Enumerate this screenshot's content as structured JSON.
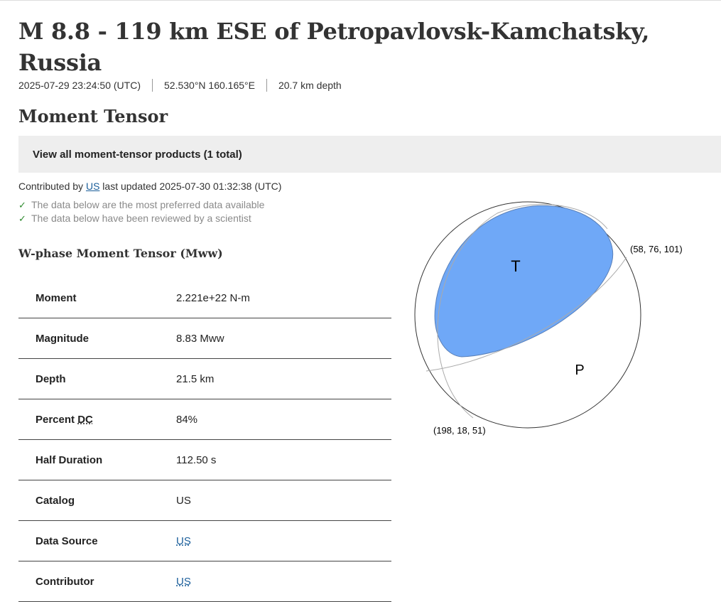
{
  "event": {
    "title": "M 8.8 - 119 km ESE of Petropavlovsk-Kamchatsky, Russia",
    "time": "2025-07-29 23:24:50 (UTC)",
    "location": "52.530°N 160.165°E",
    "depth": "20.7 km depth"
  },
  "section_title": "Moment Tensor",
  "products_link": "View all moment-tensor products (1 total)",
  "contribution": {
    "prefix": "Contributed by",
    "contributor": "US",
    "updated": "last updated 2025-07-30 01:32:38 (UTC)"
  },
  "checks": [
    "The data below are the most preferred data available",
    "The data below have been reviewed by a scientist"
  ],
  "wphase_title": "W-phase Moment Tensor (Mww)",
  "table": {
    "rows": [
      {
        "label": "Moment",
        "value": "2.221e+22 N-m"
      },
      {
        "label": "Magnitude",
        "value": "8.83 Mww"
      },
      {
        "label": "Depth",
        "value": "21.5 km"
      },
      {
        "label_prefix": "Percent ",
        "label_abbr": "DC",
        "value": "84%"
      },
      {
        "label": "Half Duration",
        "value": "112.50 s"
      },
      {
        "label": "Catalog",
        "value": "US"
      },
      {
        "label": "Data Source",
        "value": "US"
      },
      {
        "label": "Contributor",
        "value": "US"
      }
    ]
  },
  "beachball": {
    "t_label": "T",
    "p_label": "P",
    "plane1": "(58, 76, 101)",
    "plane2": "(198, 18, 51)",
    "fill_color": "#6fa8f7"
  }
}
